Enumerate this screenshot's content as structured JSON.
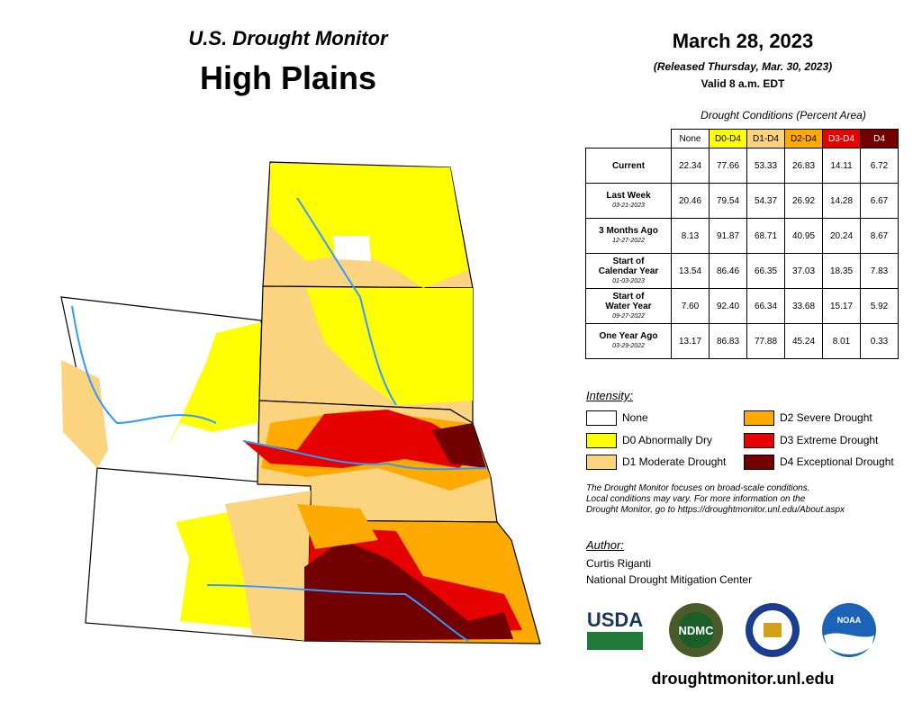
{
  "header": {
    "subtitle": "U.S. Drought Monitor",
    "title": "High Plains"
  },
  "date": {
    "map_date": "March 28, 2023",
    "released": "(Released Thursday, Mar. 30, 2023)",
    "valid": "Valid 8 a.m. EDT"
  },
  "table": {
    "caption": "Drought Conditions (Percent Area)",
    "columns": [
      "None",
      "D0-D4",
      "D1-D4",
      "D2-D4",
      "D3-D4",
      "D4"
    ],
    "rows": [
      {
        "label": [
          "Current"
        ],
        "date": null,
        "values": [
          "22.34",
          "77.66",
          "53.33",
          "26.83",
          "14.11",
          "6.72"
        ]
      },
      {
        "label": [
          "Last Week"
        ],
        "date": "03-21-2023",
        "values": [
          "20.46",
          "79.54",
          "54.37",
          "26.92",
          "14.28",
          "6.67"
        ]
      },
      {
        "label": [
          "3 Months Ago"
        ],
        "date": "12-27-2022",
        "values": [
          "8.13",
          "91.87",
          "68.71",
          "40.95",
          "20.24",
          "8.67"
        ]
      },
      {
        "label": [
          "Start of",
          "Calendar Year"
        ],
        "date": "01-03-2023",
        "values": [
          "13.54",
          "86.46",
          "66.35",
          "37.03",
          "18.35",
          "7.83"
        ]
      },
      {
        "label": [
          "Start of",
          "Water Year"
        ],
        "date": "09-27-2022",
        "values": [
          "7.60",
          "92.40",
          "66.34",
          "33.68",
          "15.17",
          "5.92"
        ]
      },
      {
        "label": [
          "One Year Ago"
        ],
        "date": "03-29-2022",
        "values": [
          "13.17",
          "86.83",
          "77.88",
          "45.24",
          "8.01",
          "0.33"
        ]
      }
    ]
  },
  "legend": {
    "title": "Intensity:",
    "items": [
      {
        "label": "None",
        "color": "#ffffff"
      },
      {
        "label": "D0 Abnormally Dry",
        "color": "#ffff00"
      },
      {
        "label": "D1 Moderate Drought",
        "color": "#fcd37f"
      },
      {
        "label": "D2 Severe Drought",
        "color": "#ffaa00"
      },
      {
        "label": "D3 Extreme Drought",
        "color": "#e60000"
      },
      {
        "label": "D4 Exceptional Drought",
        "color": "#730000"
      }
    ]
  },
  "note": [
    "The Drought Monitor focuses on broad-scale conditions.",
    "Local conditions may vary. For more information on the",
    "Drought Monitor, go to https://droughtmonitor.unl.edu/About.aspx"
  ],
  "author": {
    "heading": "Author:",
    "lines": [
      "Curtis Riganti",
      "National Drought Mitigation Center"
    ]
  },
  "logos": [
    "USDA",
    "NDMC",
    "NOAA"
  ],
  "url": "droughtmonitor.unl.edu"
}
